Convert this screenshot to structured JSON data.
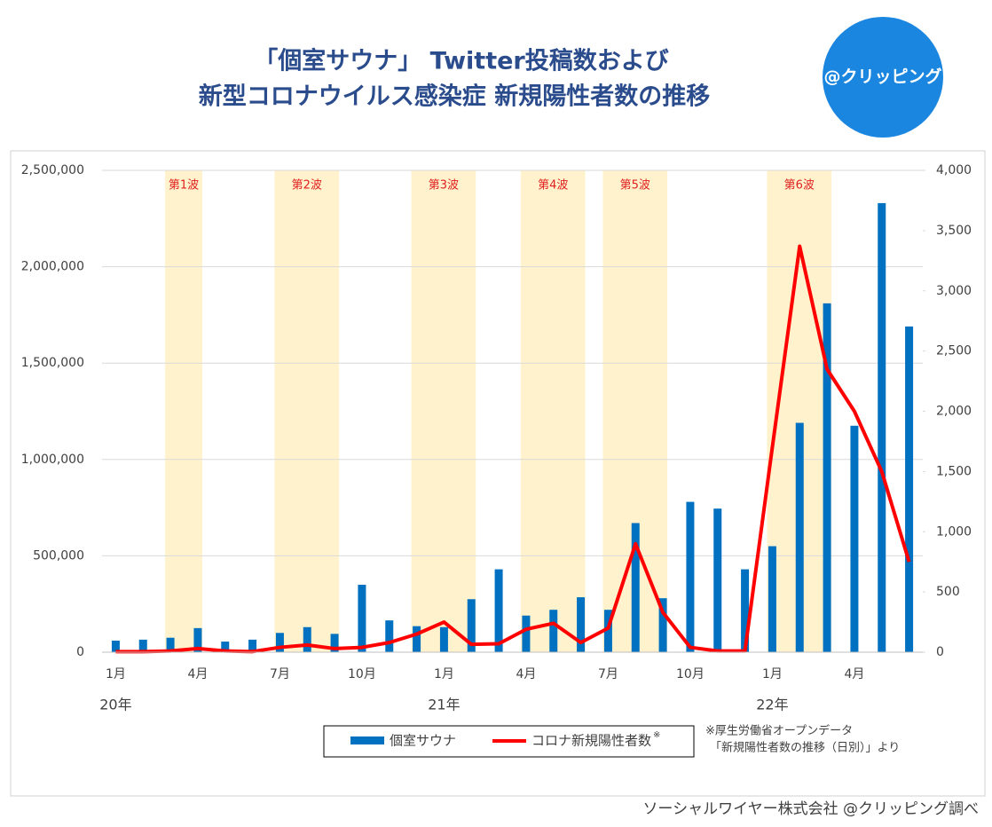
{
  "chart_data": {
    "type": "bar-line",
    "title": [
      "「個室サウナ」 Twitter投稿数および",
      "新型コロナウイルス感染症 新規陽性者数の推移"
    ],
    "logo": "@クリッピング",
    "categories": [
      "1月",
      null,
      null,
      "4月",
      null,
      null,
      "7月",
      null,
      null,
      "10月",
      null,
      null,
      "1月",
      null,
      null,
      "4月",
      null,
      null,
      "7月",
      null,
      null,
      "10月",
      null,
      null,
      "1月",
      null,
      null,
      "4月",
      null,
      null
    ],
    "year_labels": [
      "20年",
      null,
      null,
      null,
      null,
      null,
      null,
      null,
      null,
      null,
      null,
      null,
      "21年",
      null,
      null,
      null,
      null,
      null,
      null,
      null,
      null,
      null,
      null,
      null,
      "22年",
      null,
      null,
      null,
      null,
      null
    ],
    "series": [
      {
        "name": "個室サウナ",
        "color": "#0070c0",
        "type": "bar",
        "values": [
          60000,
          65000,
          75000,
          125000,
          55000,
          65000,
          100000,
          130000,
          95000,
          350000,
          165000,
          135000,
          130000,
          275000,
          430000,
          190000,
          220000,
          285000,
          220000,
          670000,
          280000,
          780000,
          745000,
          430000,
          550000,
          1190000,
          1810000,
          1175000,
          2330000,
          1690000
        ]
      },
      {
        "name": "コロナ新規陽性者数",
        "color": "#ff0000",
        "type": "line",
        "axis": "y2",
        "values": [
          5,
          5,
          10,
          30,
          10,
          5,
          40,
          60,
          30,
          40,
          80,
          150,
          250,
          65,
          70,
          190,
          240,
          80,
          200,
          900,
          330,
          40,
          10,
          10,
          1700,
          3370,
          2350,
          2000,
          1500,
          750
        ]
      }
    ],
    "legend_mark": "※",
    "ylim": [
      0,
      2500000
    ],
    "yticks": [
      0,
      {
        "value": 500000,
        "label": "500,000"
      },
      {
        "value": 1000000,
        "label": "1,000,000"
      },
      {
        "value": 1500000,
        "label": "1,500,000"
      },
      {
        "value": 2000000,
        "label": "2,000,000"
      },
      {
        "value": 2500000,
        "label": "2,500,000"
      }
    ],
    "y2lim": [
      0,
      4000
    ],
    "y2ticks": [
      0,
      500,
      {
        "value": 1000,
        "label": "1,000"
      },
      {
        "value": 1500,
        "label": "1,500"
      },
      {
        "value": 2000,
        "label": "2,000"
      },
      {
        "value": 2500,
        "label": "2,500"
      },
      {
        "value": 3000,
        "label": "3,000"
      },
      {
        "value": 3500,
        "label": "3,500"
      },
      {
        "value": 4000,
        "label": "4,000"
      }
    ],
    "grid": true,
    "waves": [
      {
        "label": "第1波",
        "start": 2,
        "end": 3
      },
      {
        "label": "第2波",
        "start": 6,
        "end": 8
      },
      {
        "label": "第3波",
        "start": 11,
        "end": 13
      },
      {
        "label": "第4波",
        "start": 15,
        "end": 17
      },
      {
        "label": "第5波",
        "start": 18,
        "end": 20
      },
      {
        "label": "第6波",
        "start": 24,
        "end": 26
      }
    ],
    "note": [
      "※厚生労働省オープンデータ",
      "「新規陽性者数の推移（日別）」より"
    ],
    "source": "ソーシャルワイヤー株式会社 @クリッピング調べ"
  }
}
